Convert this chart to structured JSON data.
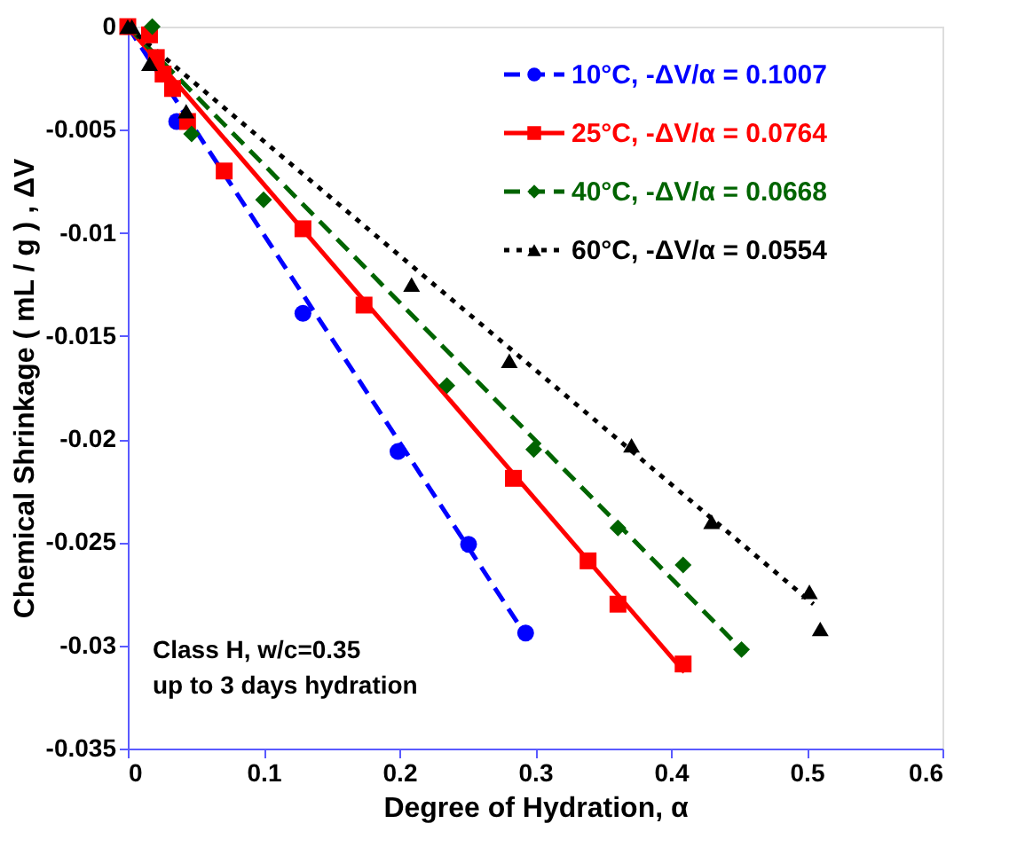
{
  "chart_data": {
    "type": "scatter",
    "xlabel": "Degree of Hydration, α",
    "ylabel": "Chemical Shrinkage ( mL / g ) , ΔV",
    "xlim": [
      0,
      0.6
    ],
    "ylim": [
      -0.035,
      0
    ],
    "xticks": [
      {
        "value": 0,
        "label": "0"
      },
      0.1,
      0.2,
      0.3,
      0.4,
      0.5,
      0.6
    ],
    "yticks": [
      {
        "value": 0,
        "label": "0"
      },
      {
        "value": -0.005,
        "label": "-0.005"
      },
      {
        "value": -0.01,
        "label": "-0.01"
      },
      {
        "value": -0.015,
        "label": "-0.015"
      },
      {
        "value": -0.02,
        "label": "-0.02"
      },
      {
        "value": -0.025,
        "label": "-0.025"
      },
      {
        "value": -0.03,
        "label": "-0.03"
      },
      {
        "value": -0.035,
        "label": "-0.035"
      }
    ],
    "grid": false,
    "legend": "top right",
    "annotations": [
      "Class H, w/c=0.35",
      "up to 3 days hydration"
    ],
    "series": [
      {
        "name": "10°C, -ΔV/α = 0.1007",
        "marker": "circle",
        "color": "#0000ff",
        "x": [
          0.036,
          0.129,
          0.199,
          0.251,
          0.293
        ],
        "values": [
          -0.0046,
          -0.0139,
          -0.0206,
          -0.0251,
          -0.0294
        ]
      },
      {
        "name": "25°C, -ΔV/α = 0.0764",
        "marker": "square",
        "color": "#ff0000",
        "x": [
          0,
          0.016,
          0.021,
          0.026,
          0.033,
          0.044,
          0.071,
          0.129,
          0.174,
          0.284,
          0.339,
          0.361,
          0.409
        ],
        "values": [
          0,
          -0.0004,
          -0.0015,
          -0.0023,
          -0.003,
          -0.0046,
          -0.007,
          -0.0098,
          -0.0135,
          -0.0219,
          -0.0259,
          -0.028,
          -0.0309
        ]
      },
      {
        "name": "40°C, -ΔV/α = 0.0668",
        "marker": "diamond",
        "color": "#006400",
        "x": [
          0.018,
          0.047,
          0.1,
          0.235,
          0.299,
          0.361,
          0.409,
          0.452
        ],
        "values": [
          0,
          -0.0052,
          -0.0084,
          -0.0174,
          -0.0205,
          -0.0243,
          -0.0261,
          -0.0302
        ]
      },
      {
        "name": "60°C, -ΔV/α = 0.0554",
        "marker": "triangle",
        "color": "#000000",
        "x": [
          0,
          0.003,
          0.016,
          0.043,
          0.209,
          0.281,
          0.371,
          0.43,
          0.502,
          0.51
        ],
        "values": [
          0,
          0,
          -0.0018,
          -0.0041,
          -0.0125,
          -0.0162,
          -0.0203,
          -0.024,
          -0.0274,
          -0.0292
        ]
      },
      {
        "type": "line",
        "line_style": "dashed",
        "color": "#0000ff",
        "x": [
          0,
          0.295
        ],
        "values": [
          0,
          -0.0297
        ]
      },
      {
        "type": "line",
        "line_style": "solid",
        "color": "#ff0000",
        "x": [
          0,
          0.41
        ],
        "values": [
          0,
          -0.0313
        ]
      },
      {
        "type": "line",
        "line_style": "dashed",
        "color": "#006400",
        "x": [
          0,
          0.455
        ],
        "values": [
          0,
          -0.0304
        ]
      },
      {
        "type": "line",
        "line_style": "dotted",
        "color": "#000000",
        "x": [
          0,
          0.505
        ],
        "values": [
          0,
          -0.028
        ]
      }
    ]
  }
}
